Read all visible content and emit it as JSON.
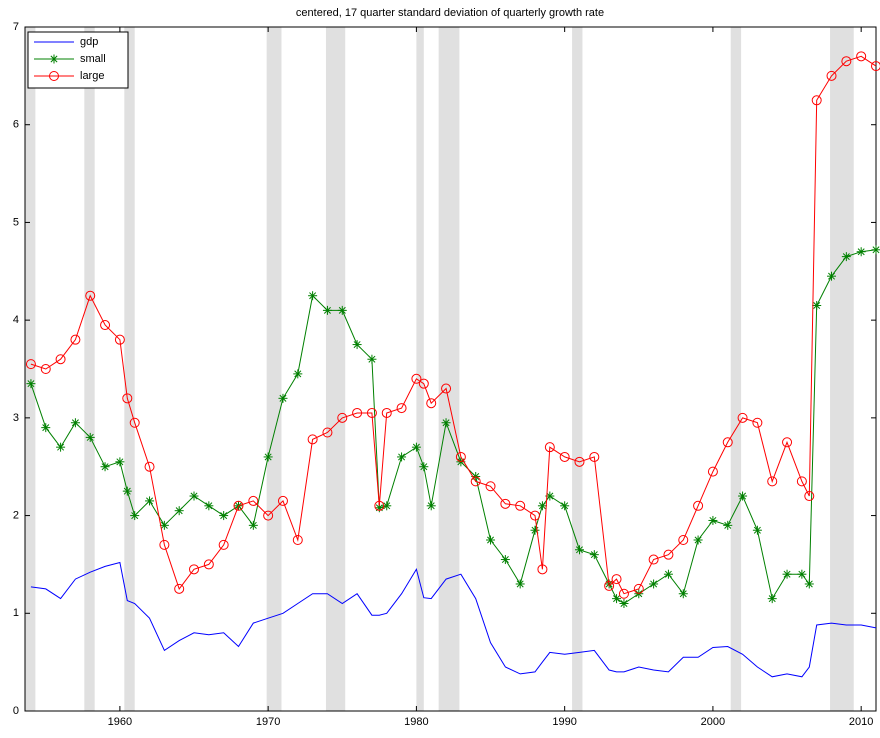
{
  "chart_data": {
    "type": "line",
    "title": "centered, 17 quarter standard deviation of quarterly growth rate",
    "x": [
      1954,
      1955,
      1956,
      1957,
      1958,
      1959,
      1960,
      1960.5,
      1961,
      1962,
      1963,
      1964,
      1965,
      1966,
      1967,
      1968,
      1969,
      1970,
      1971,
      1972,
      1973,
      1974,
      1975,
      1976,
      1977,
      1977.5,
      1978,
      1979,
      1980,
      1980.5,
      1981,
      1982,
      1983,
      1984,
      1985,
      1986,
      1987,
      1988,
      1988.5,
      1989,
      1990,
      1991,
      1992,
      1993,
      1993.5,
      1994,
      1995,
      1996,
      1997,
      1998,
      1999,
      2000,
      2001,
      2002,
      2003,
      2004,
      2005,
      2006,
      2006.5,
      2007,
      2008,
      2009,
      2010,
      2011
    ],
    "series": [
      {
        "name": "gdp",
        "color": "#0000ff",
        "marker": "none",
        "values": [
          1.27,
          1.25,
          1.15,
          1.35,
          1.42,
          1.48,
          1.52,
          1.13,
          1.1,
          0.95,
          0.62,
          0.72,
          0.8,
          0.78,
          0.8,
          0.66,
          0.9,
          0.95,
          1.0,
          1.1,
          1.2,
          1.2,
          1.1,
          1.2,
          0.98,
          0.98,
          1.0,
          1.2,
          1.45,
          1.16,
          1.15,
          1.35,
          1.4,
          1.15,
          0.7,
          0.45,
          0.38,
          0.4,
          0.5,
          0.6,
          0.58,
          0.6,
          0.62,
          0.42,
          0.4,
          0.4,
          0.45,
          0.42,
          0.4,
          0.55,
          0.55,
          0.65,
          0.66,
          0.58,
          0.45,
          0.35,
          0.38,
          0.35,
          0.45,
          0.88,
          0.9,
          0.88,
          0.88,
          0.85
        ]
      },
      {
        "name": "small",
        "color": "#008000",
        "marker": "star",
        "values": [
          3.35,
          2.9,
          2.7,
          2.95,
          2.8,
          2.5,
          2.55,
          2.25,
          2.0,
          2.15,
          1.9,
          2.05,
          2.2,
          2.1,
          2.0,
          2.1,
          1.9,
          2.6,
          3.2,
          3.45,
          4.25,
          4.1,
          4.1,
          3.75,
          3.6,
          2.08,
          2.1,
          2.6,
          2.7,
          2.5,
          2.1,
          2.95,
          2.55,
          2.4,
          1.75,
          1.55,
          1.3,
          1.85,
          2.1,
          2.2,
          2.1,
          1.65,
          1.6,
          1.3,
          1.15,
          1.1,
          1.2,
          1.3,
          1.4,
          1.2,
          1.75,
          1.95,
          1.9,
          2.2,
          1.85,
          1.15,
          1.4,
          1.4,
          1.3,
          4.15,
          4.45,
          4.65,
          4.7,
          4.72
        ]
      },
      {
        "name": "large",
        "color": "#ff0000",
        "marker": "circle",
        "values": [
          3.55,
          3.5,
          3.6,
          3.8,
          4.25,
          3.95,
          3.8,
          3.2,
          2.95,
          2.5,
          1.7,
          1.25,
          1.45,
          1.5,
          1.7,
          2.1,
          2.15,
          2.0,
          2.15,
          1.75,
          2.78,
          2.85,
          3.0,
          3.05,
          3.05,
          2.1,
          3.05,
          3.1,
          3.4,
          3.35,
          3.15,
          3.3,
          2.6,
          2.35,
          2.3,
          2.12,
          2.1,
          2.0,
          1.45,
          2.7,
          2.6,
          2.55,
          2.6,
          1.28,
          1.35,
          1.2,
          1.25,
          1.55,
          1.6,
          1.75,
          2.1,
          2.45,
          2.75,
          3.0,
          2.95,
          2.35,
          2.75,
          2.35,
          2.2,
          6.25,
          6.5,
          6.65,
          6.7,
          6.6
        ]
      }
    ],
    "shaded_periods": [
      [
        1953.6,
        1954.3
      ],
      [
        1957.6,
        1958.3
      ],
      [
        1960.3,
        1961.0
      ],
      [
        1969.9,
        1970.9
      ],
      [
        1973.9,
        1975.2
      ],
      [
        1980.0,
        1980.5
      ],
      [
        1981.5,
        1982.9
      ],
      [
        1990.5,
        1991.2
      ],
      [
        2001.2,
        2001.9
      ],
      [
        2007.9,
        2009.5
      ]
    ],
    "shade_color": "#e0e0e0",
    "xlim": [
      1953.6,
      2011
    ],
    "ylim": [
      0,
      7
    ],
    "xticks": [
      1960,
      1970,
      1980,
      1990,
      2000,
      2010
    ],
    "yticks": [
      0,
      1,
      2,
      3,
      4,
      5,
      6,
      7
    ],
    "legend": "upper left"
  }
}
